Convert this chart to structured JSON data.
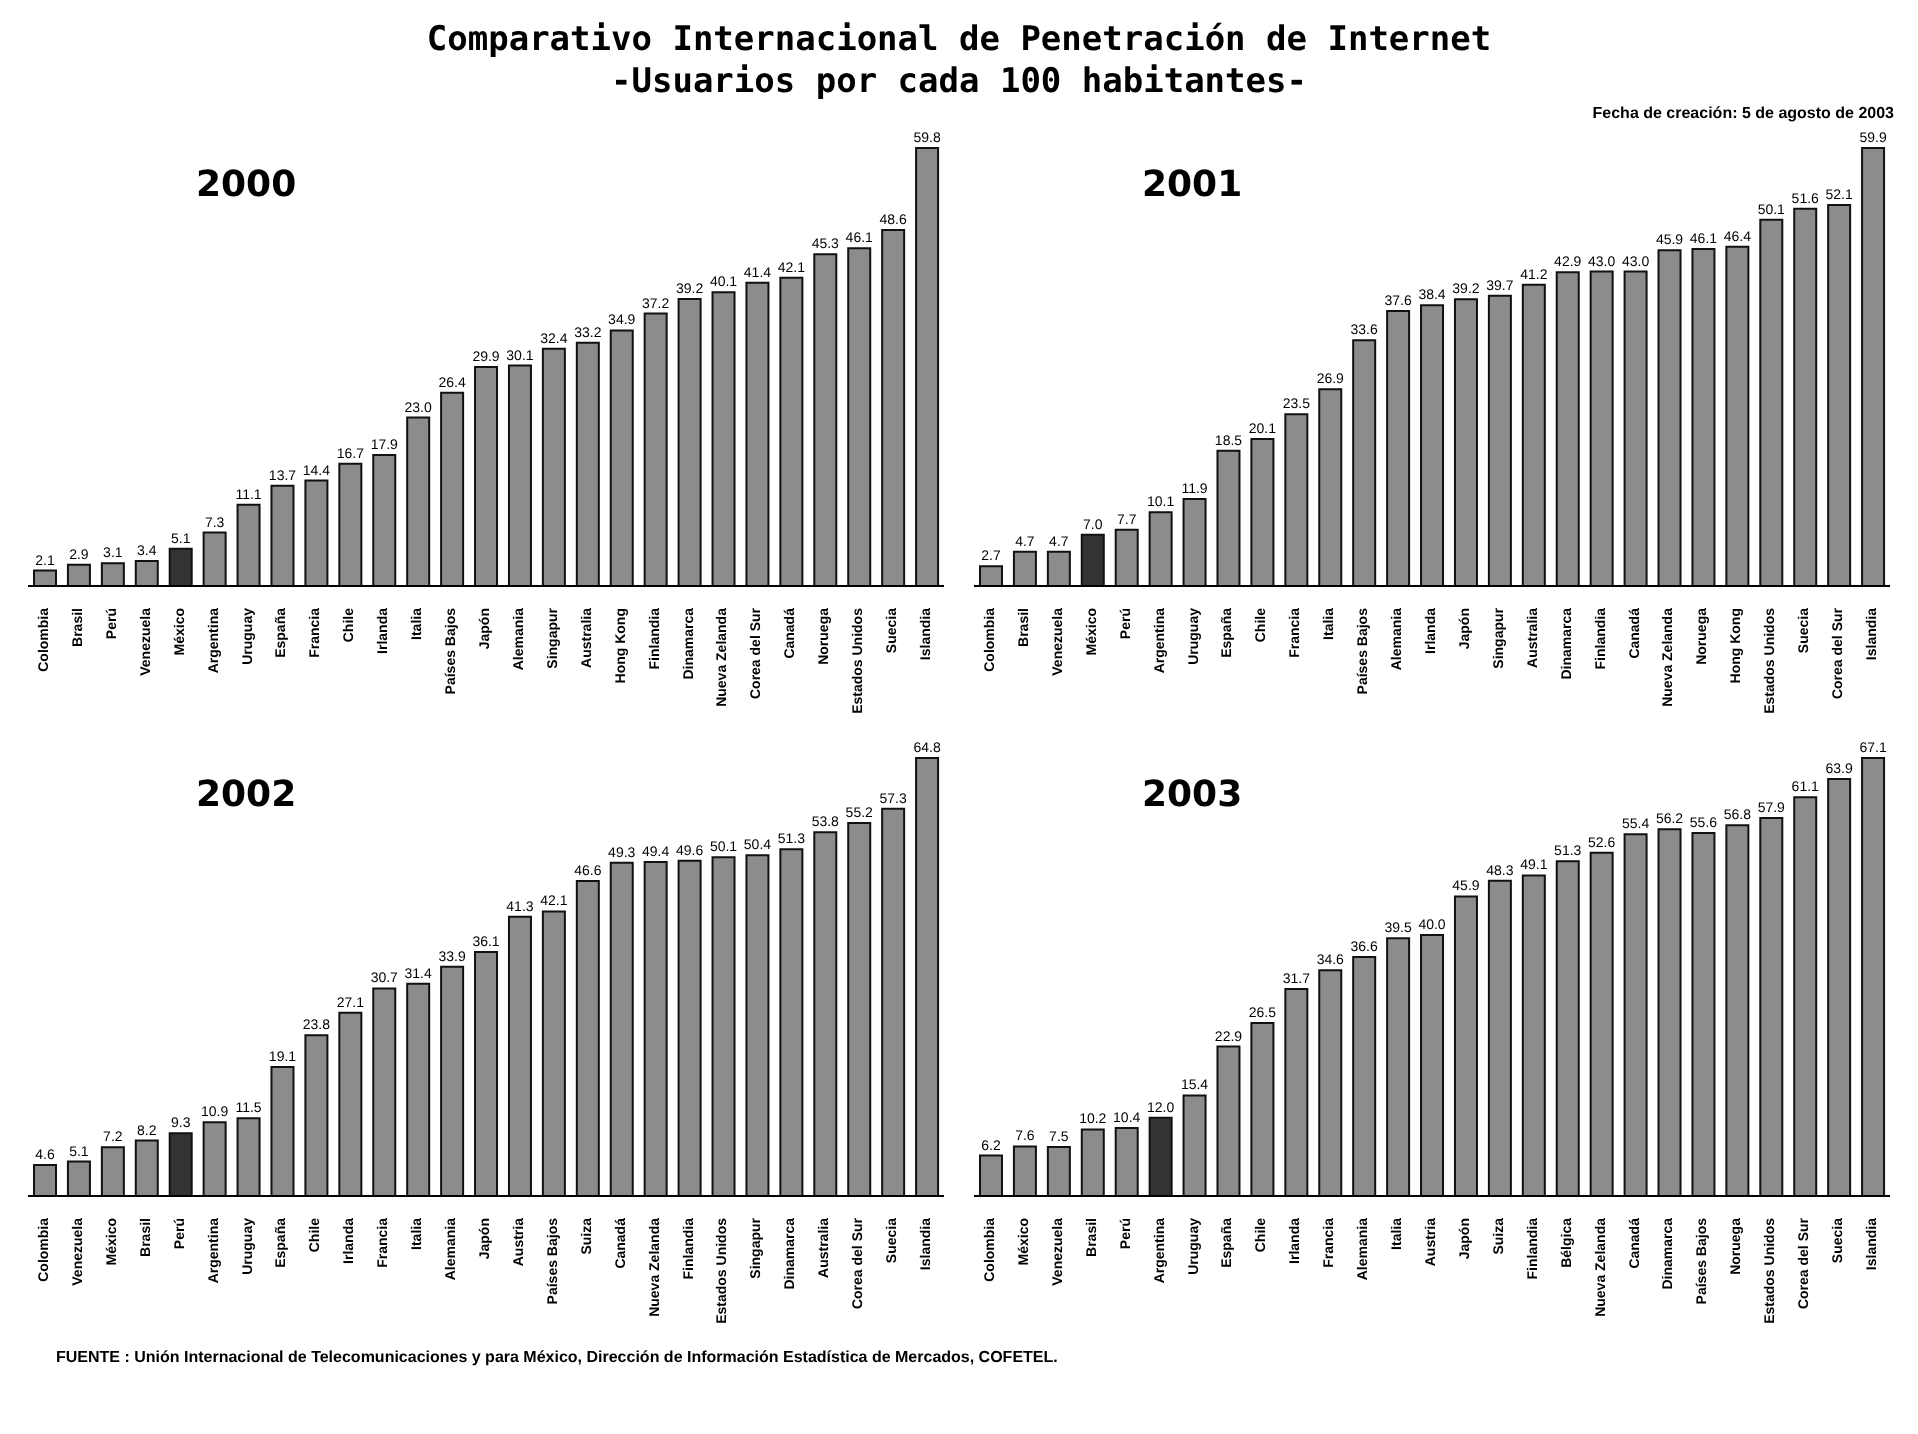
{
  "chart_data": [
    {
      "type": "bar",
      "title": "2000",
      "annotations": [
        "Comparativo Internacional de Penetración de Internet",
        "-Usuarios por cada 100 habitantes-",
        "Fecha de creación: 5 de agosto de 2003"
      ],
      "categories": [
        "Colombia",
        "Brasil",
        "Perú",
        "Venezuela",
        "México",
        "Argentina",
        "Uruguay",
        "España",
        "Francia",
        "Chile",
        "Irlanda",
        "Italia",
        "Países Bajos",
        "Japón",
        "Alemania",
        "Singapur",
        "Australia",
        "Hong Kong",
        "Finlandia",
        "Dinamarca",
        "Nueva Zelanda",
        "Corea del Sur",
        "Canadá",
        "Noruega",
        "Estados Unidos",
        "Suecia",
        "Islandia"
      ],
      "values": [
        2.1,
        2.9,
        3.1,
        3.4,
        5.1,
        7.3,
        11.1,
        13.7,
        14.4,
        16.7,
        17.9,
        23.0,
        26.4,
        29.9,
        30.1,
        32.4,
        33.2,
        34.9,
        37.2,
        39.2,
        40.1,
        41.4,
        42.1,
        45.3,
        46.1,
        48.6,
        59.8
      ],
      "value_labels": [
        "2.1",
        "2.9",
        "3.1",
        "3.4",
        "5.1",
        "7.3",
        "11.1",
        "13.7",
        "14.4",
        "16.7",
        "17.9",
        "23.0",
        "26.4",
        "29.9",
        "30.1",
        "32.4",
        "33.2",
        "34.9",
        "37.2",
        "39.2",
        "40.1",
        "41.4",
        "42.1",
        "45.3",
        "46.1",
        "48.6",
        "59.8"
      ],
      "colors": [
        "#8c8c8c",
        "#8c8c8c",
        "#8c8c8c",
        "#8c8c8c",
        "#333333",
        "#8c8c8c",
        "#8c8c8c",
        "#8c8c8c",
        "#8c8c8c",
        "#8c8c8c",
        "#8c8c8c",
        "#8c8c8c",
        "#8c8c8c",
        "#8c8c8c",
        "#8c8c8c",
        "#8c8c8c",
        "#8c8c8c",
        "#8c8c8c",
        "#8c8c8c",
        "#8c8c8c",
        "#8c8c8c",
        "#8c8c8c",
        "#8c8c8c",
        "#8c8c8c",
        "#8c8c8c",
        "#8c8c8c",
        "#8c8c8c"
      ],
      "grid": false,
      "legend": false
    },
    {
      "type": "bar",
      "title": "2001",
      "categories": [
        "Colombia",
        "Brasil",
        "Venezuela",
        "México",
        "Perú",
        "Argentina",
        "Uruguay",
        "España",
        "Chile",
        "Francia",
        "Italia",
        "Países Bajos",
        "Alemania",
        "Irlanda",
        "Japón",
        "Singapur",
        "Australia",
        "Dinamarca",
        "Finlandia",
        "Canadá",
        "Nueva Zelanda",
        "Noruega",
        "Hong Kong",
        "Estados Unidos",
        "Suecia",
        "Corea del Sur",
        "Islandia"
      ],
      "values": [
        2.7,
        4.7,
        4.7,
        7.0,
        7.7,
        10.1,
        11.9,
        18.5,
        20.1,
        23.5,
        26.9,
        33.6,
        37.6,
        38.4,
        39.2,
        39.7,
        41.2,
        42.9,
        43.0,
        43.0,
        45.9,
        46.1,
        46.4,
        50.1,
        51.6,
        52.1,
        59.9
      ],
      "value_labels": [
        "2.7",
        "4.7",
        "4.7",
        "7.0",
        "7.7",
        "10.1",
        "11.9",
        "18.5",
        "20.1",
        "23.5",
        "26.9",
        "33.6",
        "37.6",
        "38.4",
        "39.2",
        "39.7",
        "41.2",
        "42.9",
        "43.0",
        "43.0",
        "45.9",
        "46.1",
        "46.4",
        "50.1",
        "51.6",
        "52.1",
        "59.9"
      ],
      "colors": [
        "#8c8c8c",
        "#8c8c8c",
        "#8c8c8c",
        "#333333",
        "#8c8c8c",
        "#8c8c8c",
        "#8c8c8c",
        "#8c8c8c",
        "#8c8c8c",
        "#8c8c8c",
        "#8c8c8c",
        "#8c8c8c",
        "#8c8c8c",
        "#8c8c8c",
        "#8c8c8c",
        "#8c8c8c",
        "#8c8c8c",
        "#8c8c8c",
        "#8c8c8c",
        "#8c8c8c",
        "#8c8c8c",
        "#8c8c8c",
        "#8c8c8c",
        "#8c8c8c",
        "#8c8c8c",
        "#8c8c8c",
        "#8c8c8c"
      ],
      "grid": false,
      "legend": false
    },
    {
      "type": "bar",
      "title": "2002",
      "categories": [
        "Colombia",
        "Venezuela",
        "México",
        "Brasil",
        "Perú",
        "Argentina",
        "Uruguay",
        "España",
        "Chile",
        "Irlanda",
        "Francia",
        "Italia",
        "Alemania",
        "Japón",
        "Austria",
        "Países Bajos",
        "Suiza",
        "Canadá",
        "Nueva Zelanda",
        "Finlandia",
        "Estados Unidos",
        "Singapur",
        "Dinamarca",
        "Australia",
        "Corea del Sur",
        "Suecia",
        "Islandia"
      ],
      "values": [
        4.6,
        5.1,
        7.2,
        8.2,
        9.3,
        10.9,
        11.5,
        19.1,
        23.8,
        27.1,
        30.7,
        31.4,
        33.9,
        36.1,
        41.3,
        42.1,
        46.6,
        49.3,
        49.4,
        49.6,
        50.1,
        50.4,
        51.3,
        53.8,
        55.2,
        57.3,
        64.8
      ],
      "value_labels": [
        "4.6",
        "5.1",
        "7.2",
        "8.2",
        "9.3",
        "10.9",
        "11.5",
        "19.1",
        "23.8",
        "27.1",
        "30.7",
        "31.4",
        "33.9",
        "36.1",
        "41.3",
        "42.1",
        "46.6",
        "49.3",
        "49.4",
        "49.6",
        "50.1",
        "50.4",
        "51.3",
        "53.8",
        "55.2",
        "57.3",
        "64.8"
      ],
      "colors": [
        "#8c8c8c",
        "#8c8c8c",
        "#8c8c8c",
        "#8c8c8c",
        "#333333",
        "#8c8c8c",
        "#8c8c8c",
        "#8c8c8c",
        "#8c8c8c",
        "#8c8c8c",
        "#8c8c8c",
        "#8c8c8c",
        "#8c8c8c",
        "#8c8c8c",
        "#8c8c8c",
        "#8c8c8c",
        "#8c8c8c",
        "#8c8c8c",
        "#8c8c8c",
        "#8c8c8c",
        "#8c8c8c",
        "#8c8c8c",
        "#8c8c8c",
        "#8c8c8c",
        "#8c8c8c",
        "#8c8c8c",
        "#8c8c8c"
      ],
      "grid": false,
      "legend": false
    },
    {
      "type": "bar",
      "title": "2003",
      "annotations": [
        "FUENTE : Unión Internacional de Telecomunicaciones y para México, Dirección de Información Estadística de Mercados, COFETEL."
      ],
      "categories": [
        "Colombia",
        "México",
        "Venezuela",
        "Brasil",
        "Perú",
        "Argentina",
        "Uruguay",
        "España",
        "Chile",
        "Irlanda",
        "Francia",
        "Alemania",
        "Italia",
        "Austria",
        "Japón",
        "Suiza",
        "Finlandia",
        "Bélgica",
        "Nueva Zelanda",
        "Canadá",
        "Dinamarca",
        "Países Bajos",
        "Noruega",
        "Estados Unidos",
        "Corea del Sur",
        "Suecia",
        "Islandia"
      ],
      "values": [
        6.2,
        7.6,
        7.5,
        10.2,
        10.4,
        12.0,
        15.4,
        22.9,
        26.5,
        31.7,
        34.6,
        36.6,
        39.5,
        40.0,
        45.9,
        48.3,
        49.1,
        51.3,
        52.6,
        55.4,
        56.2,
        55.6,
        56.8,
        57.9,
        61.1,
        63.9,
        67.1
      ],
      "value_labels": [
        "6.2",
        "7.6",
        "7.5",
        "10.2",
        "10.4",
        "12.0",
        "15.4",
        "22.9",
        "26.5",
        "31.7",
        "34.6",
        "36.6",
        "39.5",
        "40.0",
        "45.9",
        "48.3",
        "49.1",
        "51.3",
        "52.6",
        "55.4",
        "56.2",
        "55.6",
        "56.8",
        "57.9",
        "61.1",
        "63.9",
        "67.1"
      ],
      "colors": [
        "#8c8c8c",
        "#8c8c8c",
        "#8c8c8c",
        "#8c8c8c",
        "#8c8c8c",
        "#333333",
        "#8c8c8c",
        "#8c8c8c",
        "#8c8c8c",
        "#8c8c8c",
        "#8c8c8c",
        "#8c8c8c",
        "#8c8c8c",
        "#8c8c8c",
        "#8c8c8c",
        "#8c8c8c",
        "#8c8c8c",
        "#8c8c8c",
        "#8c8c8c",
        "#8c8c8c",
        "#8c8c8c",
        "#8c8c8c",
        "#8c8c8c",
        "#8c8c8c",
        "#8c8c8c",
        "#8c8c8c",
        "#8c8c8c"
      ],
      "grid": false,
      "legend": false
    }
  ]
}
